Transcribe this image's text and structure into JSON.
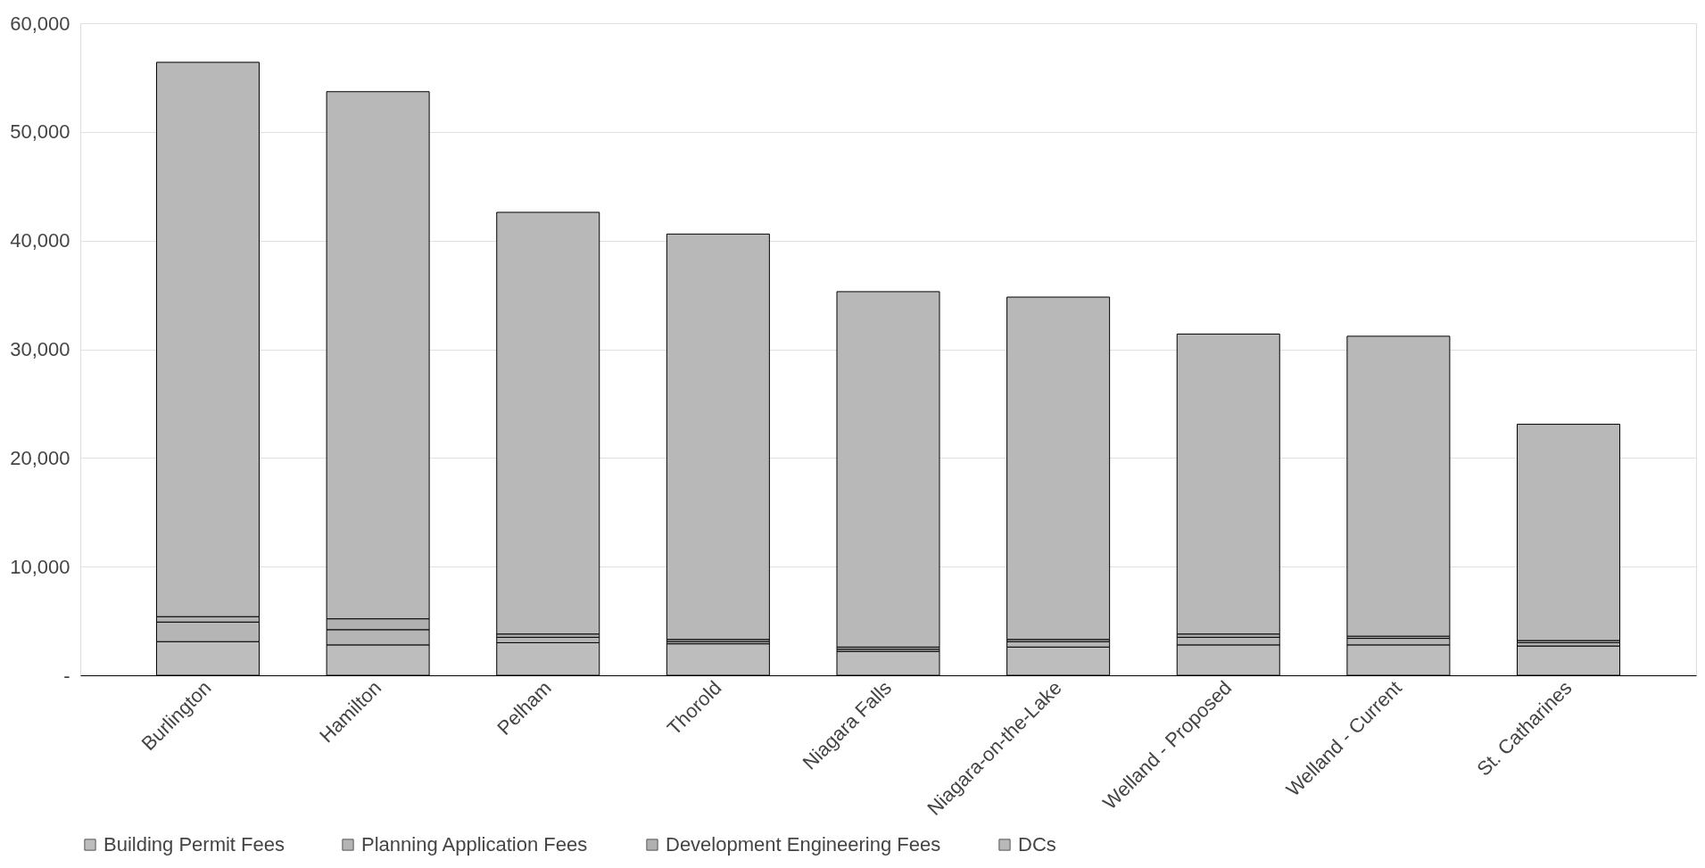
{
  "chart_data": {
    "type": "bar",
    "stacked": true,
    "categories": [
      "Burlington",
      "Hamilton",
      "Pelham",
      "Thorold",
      "Niagara Falls",
      "Niagara-on-the-Lake",
      "Welland - Proposed",
      "Welland - Current",
      "St. Catharines"
    ],
    "series": [
      {
        "name": "Building Permit Fees",
        "color": "#bdbdbd",
        "values": [
          3100,
          2800,
          3000,
          2900,
          2200,
          2600,
          2800,
          2800,
          2700
        ]
      },
      {
        "name": "Planning Application Fees",
        "color": "#b5b5b5",
        "values": [
          1800,
          1400,
          500,
          200,
          200,
          500,
          700,
          600,
          300
        ]
      },
      {
        "name": "Development Engineering Fees",
        "color": "#b0b0b0",
        "values": [
          500,
          1000,
          300,
          200,
          200,
          200,
          300,
          200,
          200
        ]
      },
      {
        "name": "DCs",
        "color": "#b8b8b8",
        "values": [
          51000,
          48500,
          38800,
          37300,
          32700,
          31500,
          27600,
          27600,
          19900
        ]
      }
    ],
    "ylim": [
      0,
      60000
    ],
    "yticks": [
      {
        "value": 0,
        "label": "-"
      },
      {
        "value": 10000,
        "label": "10,000"
      },
      {
        "value": 20000,
        "label": "20,000"
      },
      {
        "value": 30000,
        "label": "30,000"
      },
      {
        "value": 40000,
        "label": "40,000"
      },
      {
        "value": 50000,
        "label": "50,000"
      },
      {
        "value": 60000,
        "label": "60,000"
      }
    ],
    "grid": "y",
    "legend": "bottom"
  }
}
